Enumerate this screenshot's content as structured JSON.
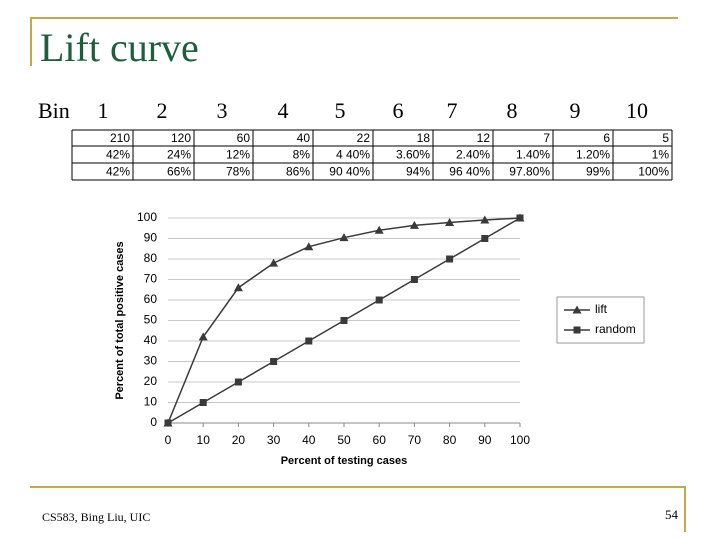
{
  "title": "Lift curve",
  "bins": {
    "label": "Bin",
    "numbers": [
      "1",
      "2",
      "3",
      "4",
      "5",
      "6",
      "7",
      "8",
      "9",
      "10"
    ]
  },
  "table": {
    "rows": [
      [
        "210",
        "120",
        "60",
        "40",
        "22",
        "18",
        "12",
        "7",
        "6",
        "5"
      ],
      [
        "42%",
        "24%",
        "12%",
        "8%",
        "4 40%",
        "3.60%",
        "2.40%",
        "1.40%",
        "1.20%",
        "1%"
      ],
      [
        "42%",
        "66%",
        "78%",
        "86%",
        "90 40%",
        "94%",
        "96 40%",
        "97.80%",
        "99%",
        "100%"
      ]
    ]
  },
  "footer": {
    "left": "CS583, Bing Liu, UIC",
    "page": "54"
  },
  "chart_data": {
    "type": "line",
    "x": [
      0,
      10,
      20,
      30,
      40,
      50,
      60,
      70,
      80,
      90,
      100
    ],
    "series": [
      {
        "name": "lift",
        "color": "#3a3a3a",
        "marker": "triangle",
        "values": [
          0,
          42,
          66,
          78,
          86,
          90.4,
          94,
          96.4,
          97.8,
          99,
          100
        ]
      },
      {
        "name": "random",
        "color": "#3a3a3a",
        "marker": "square",
        "values": [
          0,
          10,
          20,
          30,
          40,
          50,
          60,
          70,
          80,
          90,
          100
        ]
      }
    ],
    "xlim": [
      0,
      100
    ],
    "ylim": [
      0,
      100
    ],
    "xticks": [
      0,
      10,
      20,
      30,
      40,
      50,
      60,
      70,
      80,
      90,
      100
    ],
    "yticks": [
      0,
      10,
      20,
      30,
      40,
      50,
      60,
      70,
      80,
      90,
      100
    ],
    "xlabel": "Percent of testing cases",
    "ylabel": "Percent of total positive cases",
    "grid": true,
    "legend": "right"
  }
}
